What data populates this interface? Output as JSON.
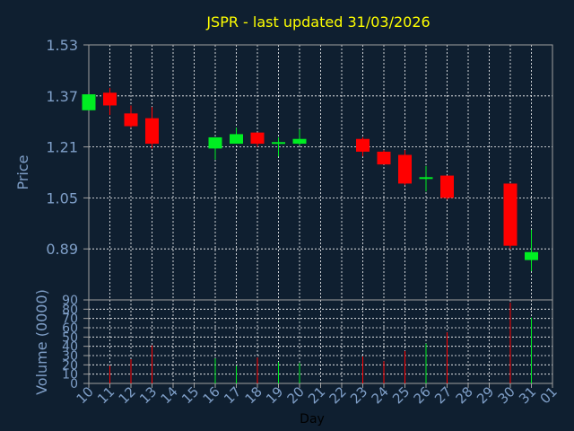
{
  "chart_data": [
    {
      "type": "candlestick",
      "title": "JSPR - last updated 31/03/2026",
      "ylabel": "Price",
      "ylim": [
        0.73,
        1.53
      ],
      "yticks": [
        "1.53",
        "1.37",
        "1.21",
        "1.05",
        "0.89"
      ],
      "grid": true,
      "colors": {
        "up": "#00ee22",
        "down": "#ff0000",
        "title": "#ffff00",
        "axis_text": "#7f9fc8",
        "grid": "#ffffff",
        "frame": "#a0a0a0"
      },
      "ohlc": [
        {
          "day": 10,
          "open": 1.325,
          "high": 1.375,
          "low": 1.325,
          "close": 1.375
        },
        {
          "day": 11,
          "open": 1.38,
          "high": 1.395,
          "low": 1.31,
          "close": 1.34
        },
        {
          "day": 12,
          "open": 1.315,
          "high": 1.34,
          "low": 1.27,
          "close": 1.275
        },
        {
          "day": 13,
          "open": 1.3,
          "high": 1.335,
          "low": 1.205,
          "close": 1.22
        },
        {
          "day": 16,
          "open": 1.205,
          "high": 1.235,
          "low": 1.17,
          "close": 1.24
        },
        {
          "day": 17,
          "open": 1.22,
          "high": 1.27,
          "low": 1.22,
          "close": 1.25
        },
        {
          "day": 18,
          "open": 1.255,
          "high": 1.255,
          "low": 1.21,
          "close": 1.22
        },
        {
          "day": 19,
          "open": 1.22,
          "high": 1.24,
          "low": 1.18,
          "close": 1.225
        },
        {
          "day": 20,
          "open": 1.22,
          "high": 1.265,
          "low": 1.215,
          "close": 1.235
        },
        {
          "day": 23,
          "open": 1.235,
          "high": 1.24,
          "low": 1.18,
          "close": 1.195
        },
        {
          "day": 24,
          "open": 1.195,
          "high": 1.2,
          "low": 1.155,
          "close": 1.155
        },
        {
          "day": 25,
          "open": 1.185,
          "high": 1.2,
          "low": 1.09,
          "close": 1.095
        },
        {
          "day": 26,
          "open": 1.11,
          "high": 1.15,
          "low": 1.07,
          "close": 1.115
        },
        {
          "day": 27,
          "open": 1.12,
          "high": 1.12,
          "low": 1.045,
          "close": 1.05
        },
        {
          "day": 30,
          "open": 1.095,
          "high": 1.095,
          "low": 0.89,
          "close": 0.9
        },
        {
          "day": 31,
          "open": 0.855,
          "high": 0.95,
          "low": 0.82,
          "close": 0.88
        }
      ]
    },
    {
      "type": "bar",
      "ylabel": "Volume (0000)",
      "xlabel": "Day",
      "ylim": [
        0,
        90
      ],
      "yticks": [
        "90",
        "80",
        "70",
        "60",
        "50",
        "40",
        "30",
        "20",
        "10",
        "0"
      ],
      "xticks": [
        "10",
        "11",
        "12",
        "13",
        "14",
        "15",
        "16",
        "17",
        "18",
        "19",
        "20",
        "21",
        "22",
        "23",
        "24",
        "25",
        "26",
        "27",
        "28",
        "29",
        "30",
        "31",
        "01"
      ],
      "grid": true,
      "bars": [
        {
          "day": 11,
          "value": 19,
          "direction": "down"
        },
        {
          "day": 12,
          "value": 26,
          "direction": "down"
        },
        {
          "day": 13,
          "value": 41,
          "direction": "down"
        },
        {
          "day": 16,
          "value": 27,
          "direction": "up"
        },
        {
          "day": 17,
          "value": 19,
          "direction": "up"
        },
        {
          "day": 18,
          "value": 28,
          "direction": "down"
        },
        {
          "day": 19,
          "value": 23,
          "direction": "up"
        },
        {
          "day": 20,
          "value": 22,
          "direction": "up"
        },
        {
          "day": 23,
          "value": 29,
          "direction": "down"
        },
        {
          "day": 24,
          "value": 24,
          "direction": "down"
        },
        {
          "day": 25,
          "value": 35,
          "direction": "down"
        },
        {
          "day": 26,
          "value": 43,
          "direction": "up"
        },
        {
          "day": 27,
          "value": 55,
          "direction": "down"
        },
        {
          "day": 30,
          "value": 87,
          "direction": "down"
        },
        {
          "day": 31,
          "value": 71,
          "direction": "up"
        }
      ]
    }
  ]
}
